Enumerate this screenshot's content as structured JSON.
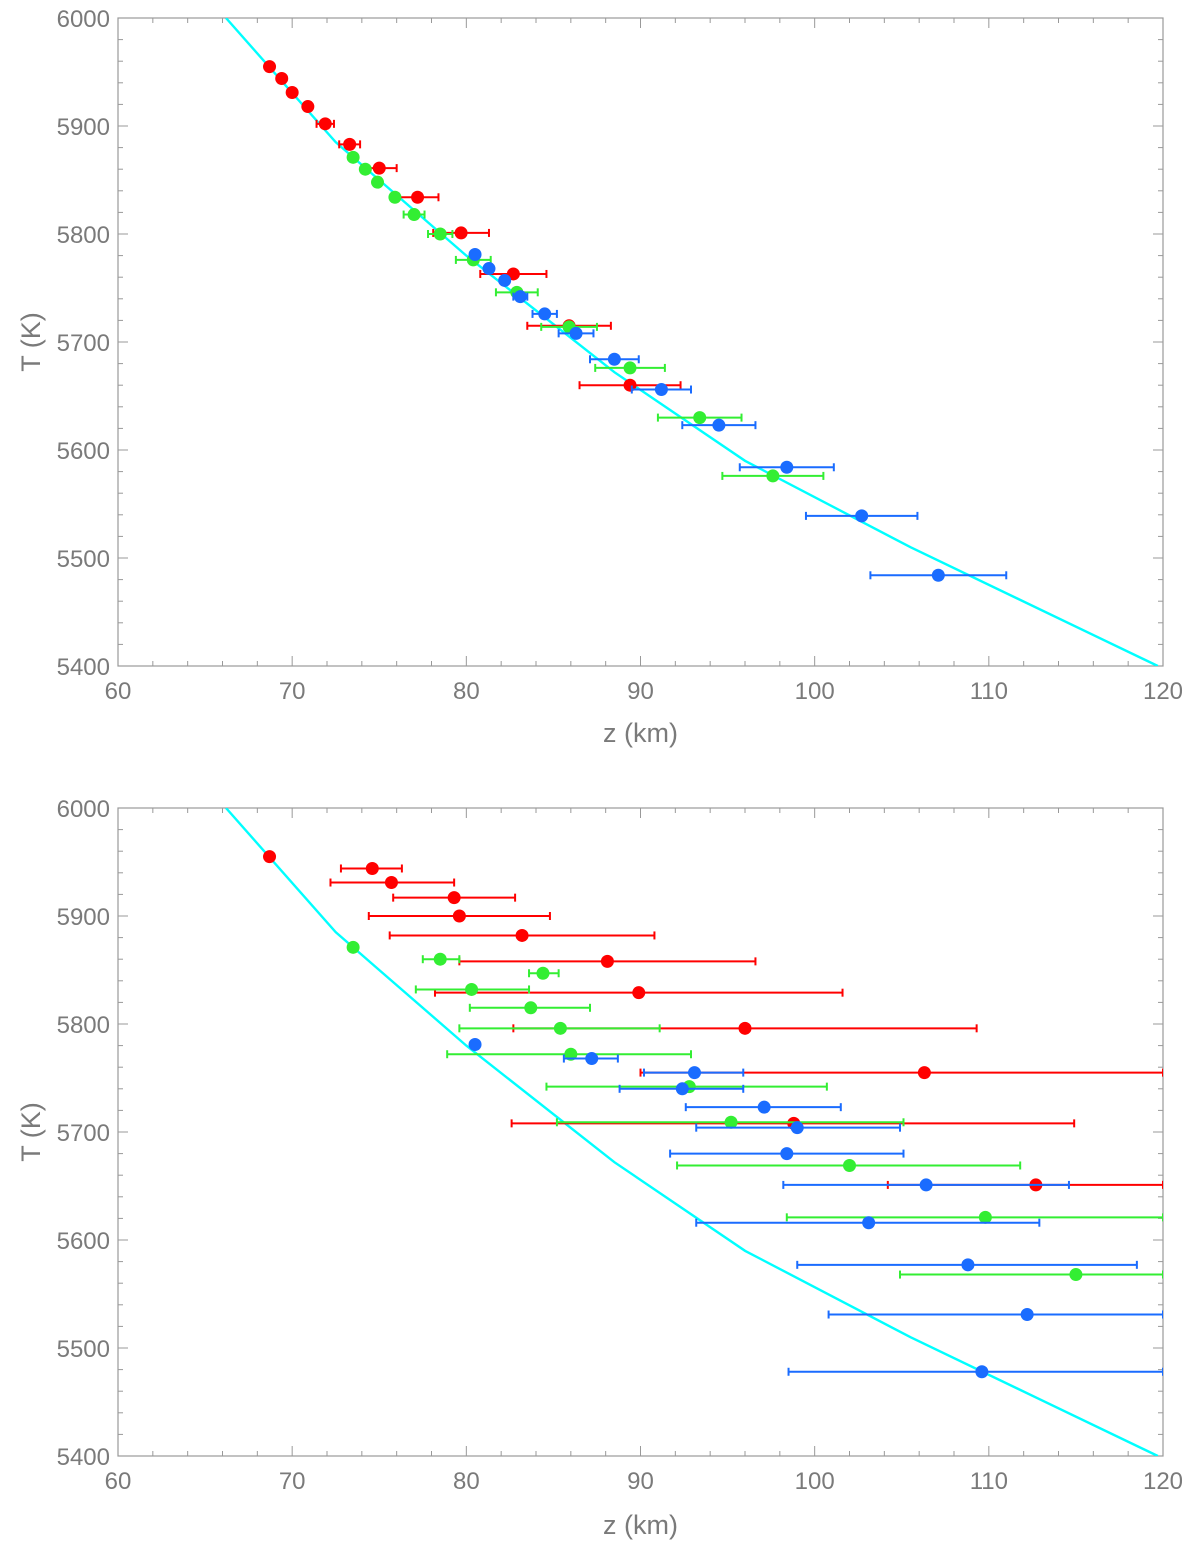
{
  "chart_data": [
    {
      "type": "scatter",
      "title": "",
      "xlabel": "z (km)",
      "ylabel": "T (K)",
      "xlim": [
        60,
        120
      ],
      "ylim": [
        5400,
        6000
      ],
      "x_ticks": [
        "60",
        "70",
        "80",
        "90",
        "100",
        "110",
        "120"
      ],
      "y_ticks": [
        "5400",
        "5500",
        "5600",
        "5700",
        "5800",
        "5900",
        "6000"
      ],
      "grid": false,
      "reference_curve": {
        "color": "#00ffff",
        "points": [
          [
            66.2,
            6000
          ],
          [
            72.5,
            5885
          ],
          [
            80,
            5780
          ],
          [
            88.5,
            5672
          ],
          [
            96,
            5590
          ],
          [
            105.5,
            5510
          ],
          [
            119.7,
            5400
          ]
        ]
      },
      "series": [
        {
          "color": "#ff0000",
          "points": [
            {
              "x": 68.7,
              "y": 5955,
              "err": 0
            },
            {
              "x": 69.4,
              "y": 5944,
              "err": 0
            },
            {
              "x": 70.0,
              "y": 5931,
              "err": 0
            },
            {
              "x": 70.9,
              "y": 5918,
              "err": 0
            },
            {
              "x": 71.9,
              "y": 5902,
              "err": 0.5
            },
            {
              "x": 73.3,
              "y": 5883,
              "err": 0.6
            },
            {
              "x": 75.0,
              "y": 5861,
              "err": 1.0
            },
            {
              "x": 77.2,
              "y": 5834,
              "err": 1.2
            },
            {
              "x": 79.7,
              "y": 5801,
              "err": 1.6
            },
            {
              "x": 82.7,
              "y": 5763,
              "err": 1.9
            },
            {
              "x": 85.9,
              "y": 5715,
              "err": 2.4
            },
            {
              "x": 89.4,
              "y": 5660,
              "err": 2.9
            }
          ]
        },
        {
          "color": "#33ee33",
          "points": [
            {
              "x": 73.5,
              "y": 5871,
              "err": 0
            },
            {
              "x": 74.2,
              "y": 5860,
              "err": 0
            },
            {
              "x": 74.9,
              "y": 5848,
              "err": 0
            },
            {
              "x": 75.9,
              "y": 5834,
              "err": 0
            },
            {
              "x": 77.0,
              "y": 5818,
              "err": 0.6
            },
            {
              "x": 78.5,
              "y": 5800,
              "err": 0.7
            },
            {
              "x": 80.4,
              "y": 5776,
              "err": 1.0
            },
            {
              "x": 82.9,
              "y": 5746,
              "err": 1.2
            },
            {
              "x": 85.9,
              "y": 5714,
              "err": 1.6
            },
            {
              "x": 89.4,
              "y": 5676,
              "err": 2.0
            },
            {
              "x": 93.4,
              "y": 5630,
              "err": 2.4
            },
            {
              "x": 97.6,
              "y": 5576,
              "err": 2.9
            }
          ]
        },
        {
          "color": "#1a6cff",
          "points": [
            {
              "x": 80.5,
              "y": 5781,
              "err": 0
            },
            {
              "x": 81.3,
              "y": 5768,
              "err": 0
            },
            {
              "x": 82.2,
              "y": 5757,
              "err": 0
            },
            {
              "x": 83.1,
              "y": 5742,
              "err": 0.4
            },
            {
              "x": 84.5,
              "y": 5726,
              "err": 0.7
            },
            {
              "x": 86.3,
              "y": 5708,
              "err": 1.0
            },
            {
              "x": 88.5,
              "y": 5684,
              "err": 1.4
            },
            {
              "x": 91.2,
              "y": 5656,
              "err": 1.7
            },
            {
              "x": 94.5,
              "y": 5623,
              "err": 2.1
            },
            {
              "x": 98.4,
              "y": 5584,
              "err": 2.7
            },
            {
              "x": 102.7,
              "y": 5539,
              "err": 3.2
            },
            {
              "x": 107.1,
              "y": 5484,
              "err": 3.9
            }
          ]
        }
      ]
    },
    {
      "type": "scatter",
      "title": "",
      "xlabel": "z (km)",
      "ylabel": "T (K)",
      "xlim": [
        60,
        120
      ],
      "ylim": [
        5400,
        6000
      ],
      "x_ticks": [
        "60",
        "70",
        "80",
        "90",
        "100",
        "110",
        "120"
      ],
      "y_ticks": [
        "5400",
        "5500",
        "5600",
        "5700",
        "5800",
        "5900",
        "6000"
      ],
      "grid": false,
      "reference_curve": {
        "color": "#00ffff",
        "points": [
          [
            66.2,
            6000
          ],
          [
            72.5,
            5885
          ],
          [
            80,
            5780
          ],
          [
            88.5,
            5672
          ],
          [
            96,
            5590
          ],
          [
            105.5,
            5510
          ],
          [
            119.7,
            5400
          ]
        ]
      },
      "series": [
        {
          "color": "#ff0000",
          "points": [
            {
              "x": 68.7,
              "y": 5955,
              "lo": 68.7,
              "hi": 68.7
            },
            {
              "x": 74.6,
              "y": 5944,
              "lo": 72.8,
              "hi": 76.3
            },
            {
              "x": 75.7,
              "y": 5931,
              "lo": 72.2,
              "hi": 79.3
            },
            {
              "x": 79.3,
              "y": 5917,
              "lo": 75.8,
              "hi": 82.8
            },
            {
              "x": 79.6,
              "y": 5900,
              "lo": 74.4,
              "hi": 84.8
            },
            {
              "x": 83.2,
              "y": 5882,
              "lo": 75.6,
              "hi": 90.8
            },
            {
              "x": 88.1,
              "y": 5858,
              "lo": 79.6,
              "hi": 96.6
            },
            {
              "x": 89.9,
              "y": 5829,
              "lo": 78.2,
              "hi": 101.6
            },
            {
              "x": 96.0,
              "y": 5796,
              "lo": 82.7,
              "hi": 109.3
            },
            {
              "x": 106.3,
              "y": 5755,
              "lo": 90.0,
              "hi": 120.0
            },
            {
              "x": 98.8,
              "y": 5708,
              "lo": 82.6,
              "hi": 114.9
            },
            {
              "x": 112.7,
              "y": 5651,
              "lo": 104.2,
              "hi": 120.0
            }
          ]
        },
        {
          "color": "#33ee33",
          "points": [
            {
              "x": 73.5,
              "y": 5871,
              "lo": 73.5,
              "hi": 73.5
            },
            {
              "x": 78.5,
              "y": 5860,
              "lo": 77.5,
              "hi": 79.6
            },
            {
              "x": 84.4,
              "y": 5847,
              "lo": 83.6,
              "hi": 85.3
            },
            {
              "x": 80.3,
              "y": 5832,
              "lo": 77.1,
              "hi": 83.6
            },
            {
              "x": 83.7,
              "y": 5815,
              "lo": 80.2,
              "hi": 87.1
            },
            {
              "x": 85.4,
              "y": 5796,
              "lo": 79.6,
              "hi": 91.1
            },
            {
              "x": 86.0,
              "y": 5772,
              "lo": 78.9,
              "hi": 92.9
            },
            {
              "x": 92.8,
              "y": 5742,
              "lo": 84.6,
              "hi": 100.7
            },
            {
              "x": 95.2,
              "y": 5709,
              "lo": 85.2,
              "hi": 105.1
            },
            {
              "x": 102.0,
              "y": 5669,
              "lo": 92.1,
              "hi": 111.8
            },
            {
              "x": 109.8,
              "y": 5621,
              "lo": 98.4,
              "hi": 120.0
            },
            {
              "x": 115.0,
              "y": 5568,
              "lo": 104.9,
              "hi": 120.0
            }
          ]
        },
        {
          "color": "#1a6cff",
          "points": [
            {
              "x": 80.5,
              "y": 5781,
              "lo": 80.5,
              "hi": 80.5
            },
            {
              "x": 87.2,
              "y": 5768,
              "lo": 85.6,
              "hi": 88.7
            },
            {
              "x": 93.1,
              "y": 5755,
              "lo": 90.2,
              "hi": 95.9
            },
            {
              "x": 92.4,
              "y": 5740,
              "lo": 88.8,
              "hi": 95.9
            },
            {
              "x": 97.1,
              "y": 5723,
              "lo": 92.6,
              "hi": 101.5
            },
            {
              "x": 99.0,
              "y": 5704,
              "lo": 93.2,
              "hi": 104.9
            },
            {
              "x": 98.4,
              "y": 5680,
              "lo": 91.7,
              "hi": 105.1
            },
            {
              "x": 106.4,
              "y": 5651,
              "lo": 98.2,
              "hi": 114.6
            },
            {
              "x": 103.1,
              "y": 5616,
              "lo": 93.2,
              "hi": 112.9
            },
            {
              "x": 108.8,
              "y": 5577,
              "lo": 99.0,
              "hi": 118.5
            },
            {
              "x": 112.2,
              "y": 5531,
              "lo": 100.8,
              "hi": 120.0
            },
            {
              "x": 109.6,
              "y": 5478,
              "lo": 98.5,
              "hi": 120.0
            }
          ]
        }
      ]
    }
  ]
}
